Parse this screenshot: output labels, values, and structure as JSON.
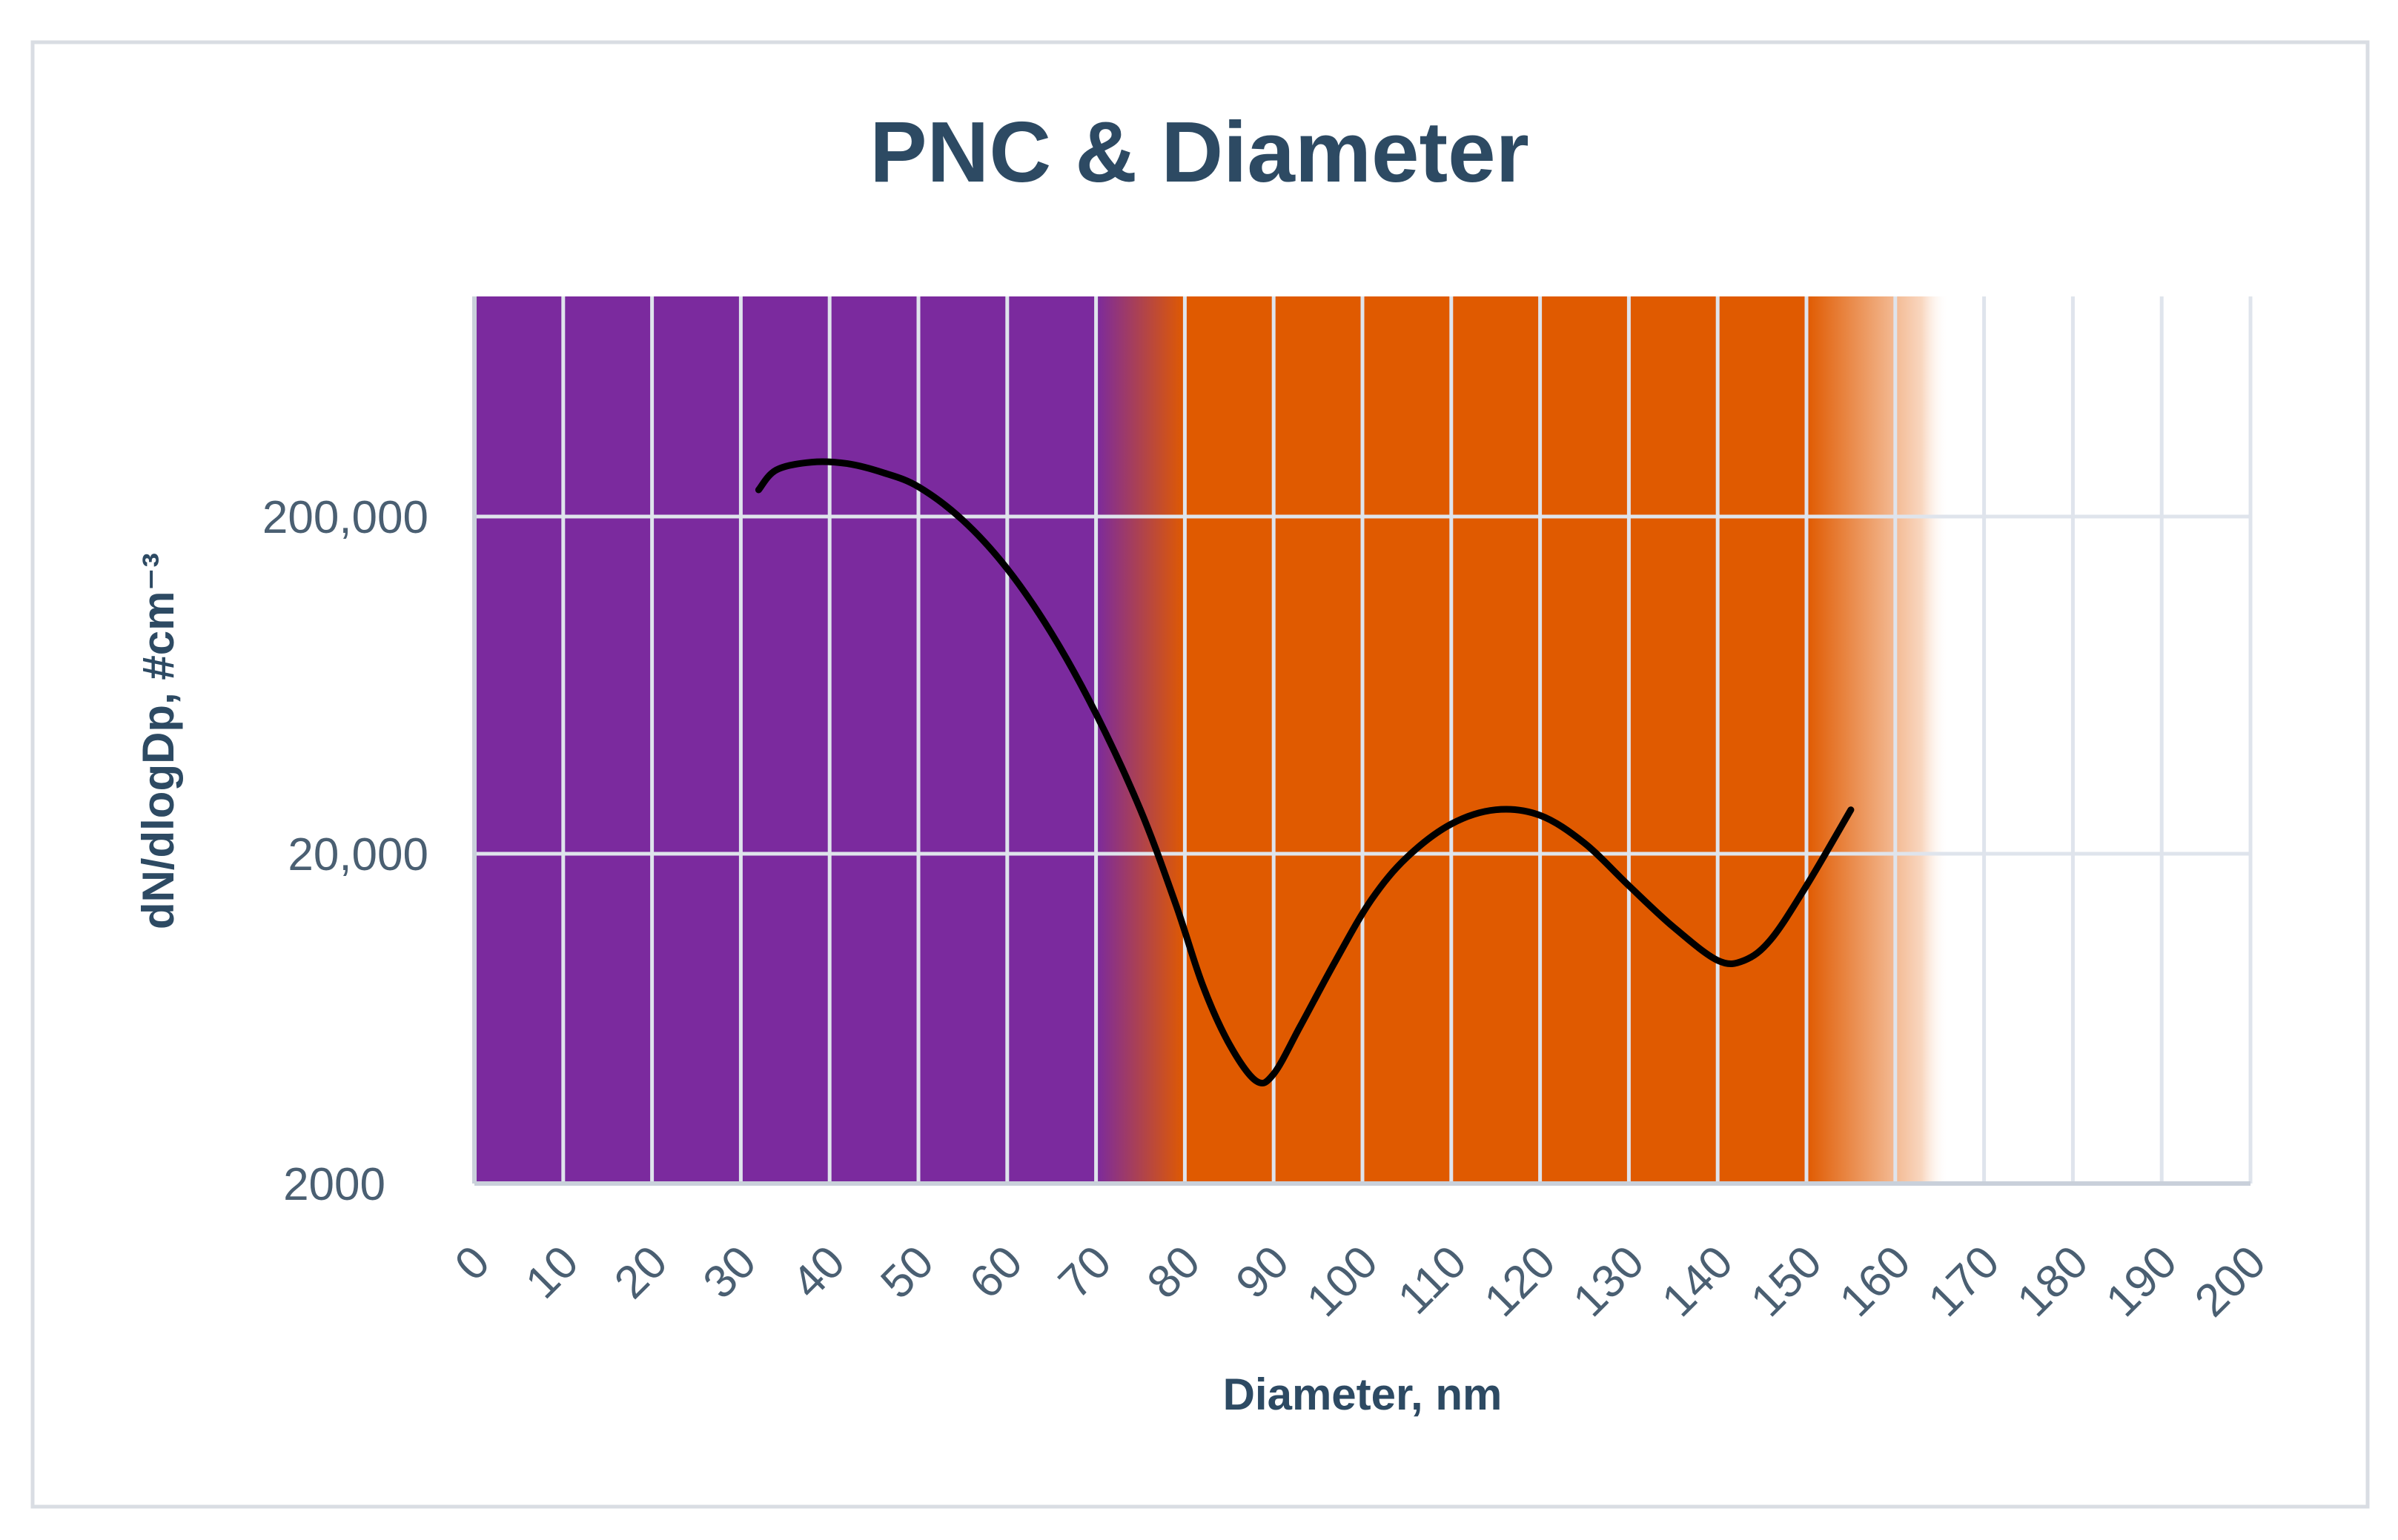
{
  "chart_data": {
    "type": "line",
    "title": "PNC & Diameter",
    "xlabel": "Diameter, nm",
    "ylabel": "dN/dlogDp, #cm⁻³",
    "xlim": [
      0,
      200
    ],
    "ylim": [
      2000,
      800000
    ],
    "yscale": "log",
    "grid": true,
    "legend": "none",
    "x_ticks": [
      "0",
      "10",
      "20",
      "30",
      "40",
      "50",
      "60",
      "70",
      "80",
      "90",
      "100",
      "110",
      "120",
      "130",
      "140",
      "150",
      "160",
      "170",
      "180",
      "190",
      "200"
    ],
    "y_ticks": [
      {
        "value": 2000,
        "label": "2000"
      },
      {
        "value": 20000,
        "label": "20,000"
      },
      {
        "value": 200000,
        "label": "200,000"
      }
    ],
    "background_bands": [
      {
        "from": 0,
        "to": 70,
        "color": "#7b2a9e",
        "fade_to": 80
      },
      {
        "from": 80,
        "to": 150,
        "color": "#e05a00",
        "fade_from": 70,
        "fade_to": 163
      }
    ],
    "series": [
      {
        "color": "#000000",
        "x": [
          32,
          34,
          38,
          42,
          46,
          50,
          55,
          60,
          65,
          70,
          75,
          79,
          82,
          85,
          88,
          90,
          93,
          97,
          101,
          105,
          110,
          115,
          120,
          125,
          130,
          135,
          140,
          143,
          146,
          150,
          155
        ],
        "y": [
          240000,
          275000,
          290000,
          287000,
          270000,
          245000,
          195000,
          140000,
          90000,
          52000,
          27000,
          14000,
          8000,
          5300,
          4100,
          4300,
          6000,
          9500,
          14500,
          19500,
          24500,
          27000,
          26000,
          21500,
          16000,
          12000,
          9500,
          9500,
          11000,
          16000,
          27000
        ]
      }
    ]
  }
}
